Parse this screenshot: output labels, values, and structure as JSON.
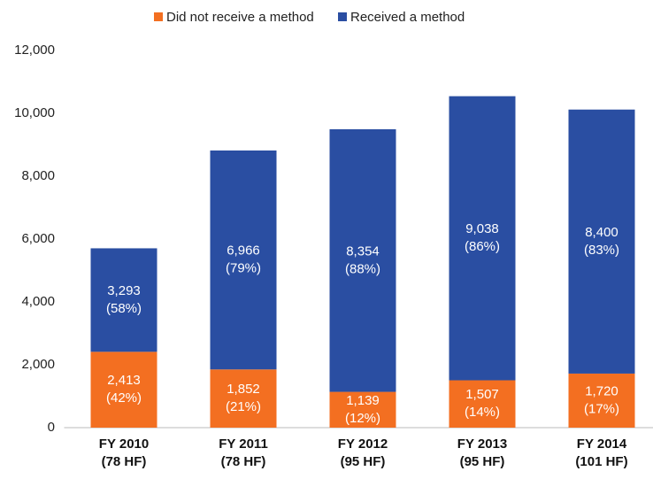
{
  "chart_data": {
    "type": "stacked_bar",
    "categories": [
      [
        "FY 2010",
        "(78 HF)"
      ],
      [
        "FY 2011",
        "(78 HF)"
      ],
      [
        "FY 2012",
        "(95 HF)"
      ],
      [
        "FY 2013",
        "(95 HF)"
      ],
      [
        "FY 2014",
        "(101 HF)"
      ]
    ],
    "series": [
      {
        "name": "Did not receive a method",
        "color": "#f36f21",
        "values": [
          2413,
          1852,
          1139,
          1507,
          1720
        ],
        "value_labels": [
          [
            "2,413",
            "(42%)"
          ],
          [
            "1,852",
            "(21%)"
          ],
          [
            "1,139",
            "(12%)"
          ],
          [
            "1,507",
            "(14%)"
          ],
          [
            "1,720",
            "(17%)"
          ]
        ]
      },
      {
        "name": "Received a method",
        "color": "#2a4ea2",
        "values": [
          3293,
          6966,
          8354,
          9038,
          8400
        ],
        "value_labels": [
          [
            "3,293",
            "(58%)"
          ],
          [
            "6,966",
            "(79%)"
          ],
          [
            "8,354",
            "(88%)"
          ],
          [
            "9,038",
            "(86%)"
          ],
          [
            "8,400",
            "(83%)"
          ]
        ]
      }
    ],
    "ylim": [
      0,
      12000
    ],
    "yticks": [
      0,
      {
        "value": 2000,
        "label": "2,000"
      },
      {
        "value": 4000,
        "label": "4,000"
      },
      {
        "value": 6000,
        "label": "6,000"
      },
      {
        "value": 8000,
        "label": "8,000"
      },
      {
        "value": 10000,
        "label": "10,000"
      },
      {
        "value": 12000,
        "label": "12,000"
      }
    ],
    "legend": "top"
  }
}
